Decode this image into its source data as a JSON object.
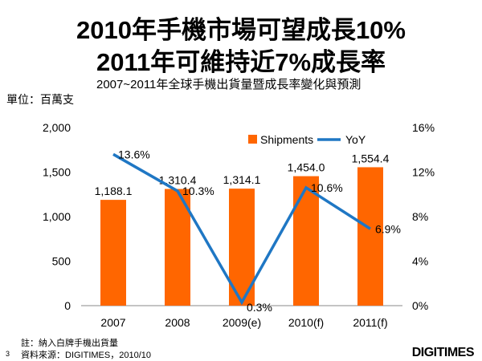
{
  "title_line1": "2010年手機市場可望成長10%",
  "title_line2": "2011年可維持近7%成長率",
  "logo": "DIGITIMES",
  "page_number": "3",
  "note": "註：納入白牌手機出貨量",
  "source": "資料來源：DIGITIMES，2010/10",
  "chart_data": {
    "type": "bar",
    "title": "2007~2011年全球手機出貨量暨成長率變化與預測",
    "unit_label": "單位：百萬支",
    "categories": [
      "2007",
      "2008",
      "2009(e)",
      "2010(f)",
      "2011(f)"
    ],
    "series": [
      {
        "name": "Shipments",
        "type": "bar",
        "axis": "left",
        "color": "#ff6600",
        "values": [
          1188.1,
          1310.4,
          1314.1,
          1454.0,
          1554.4
        ],
        "labels": [
          "1,188.1",
          "1,310.4",
          "1,314.1",
          "1,454.0",
          "1,554.4"
        ]
      },
      {
        "name": "YoY",
        "type": "line",
        "axis": "right",
        "color": "#1f77c4",
        "values": [
          13.6,
          10.3,
          0.3,
          10.6,
          6.9
        ],
        "labels": [
          "13.6%",
          "10.3%",
          "0.3%",
          "10.6%",
          "6.9%"
        ]
      }
    ],
    "left_axis": {
      "min": 0,
      "max": 2000,
      "ticks": [
        "0",
        "500",
        "1,000",
        "1,500",
        "2,000"
      ]
    },
    "right_axis": {
      "min": 0,
      "max": 16,
      "ticks": [
        "0%",
        "4%",
        "8%",
        "12%",
        "16%"
      ]
    },
    "legend": "top-right",
    "grid": false
  }
}
